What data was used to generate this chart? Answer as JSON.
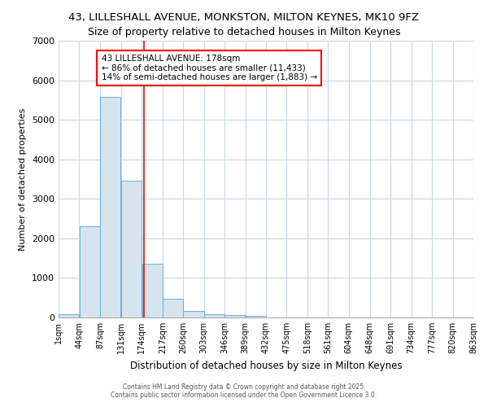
{
  "title": "43, LILLESHALL AVENUE, MONKSTON, MILTON KEYNES, MK10 9FZ",
  "subtitle": "Size of property relative to detached houses in Milton Keynes",
  "xlabel": "Distribution of detached houses by size in Milton Keynes",
  "ylabel": "Number of detached properties",
  "bin_edges": [
    1,
    44,
    87,
    131,
    174,
    217,
    260,
    303,
    346,
    389,
    432,
    475,
    518,
    561,
    604,
    648,
    691,
    734,
    777,
    820,
    863
  ],
  "bar_heights": [
    80,
    2300,
    5580,
    3460,
    1360,
    470,
    165,
    80,
    55,
    40,
    0,
    0,
    0,
    0,
    0,
    0,
    0,
    0,
    0,
    0
  ],
  "bar_color": "#d6e4f0",
  "bar_edgecolor": "#6aaed6",
  "property_size": 178,
  "vline_color": "red",
  "annotation_text": "43 LILLESHALL AVENUE: 178sqm\n← 86% of detached houses are smaller (11,433)\n14% of semi-detached houses are larger (1,883) →",
  "annotation_box_edgecolor": "red",
  "annotation_box_facecolor": "white",
  "ylim": [
    0,
    7000
  ],
  "xlim": [
    1,
    863
  ],
  "background_color": "#ffffff",
  "grid_color": "#c8d8e8",
  "footer_line1": "Contains HM Land Registry data © Crown copyright and database right 2025.",
  "footer_line2": "Contains public sector information licensed under the Open Government Licence 3.0.",
  "title_fontsize": 9.5,
  "subtitle_fontsize": 9,
  "tick_fontsize": 7,
  "ylabel_fontsize": 8,
  "xlabel_fontsize": 8.5
}
